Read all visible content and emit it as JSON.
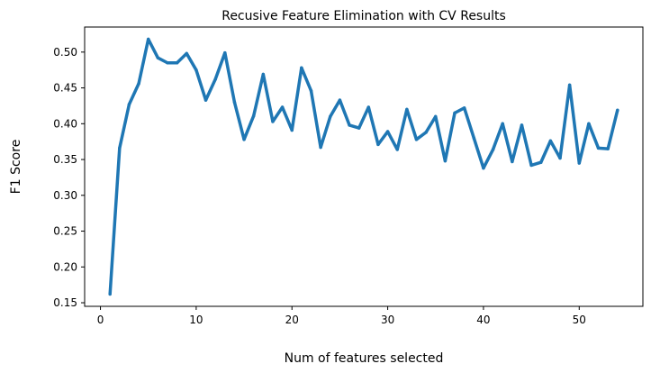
{
  "chart_data": {
    "type": "line",
    "title": "Recusive Feature Elimination with CV Results",
    "xlabel": "Num of features selected",
    "ylabel": "F1 Score",
    "xlim": [
      -1.65,
      56.65
    ],
    "ylim": [
      0.145,
      0.535
    ],
    "xticks": [
      0,
      10,
      20,
      30,
      40,
      50
    ],
    "yticks": [
      0.15,
      0.2,
      0.25,
      0.3,
      0.35,
      0.4,
      0.45,
      0.5
    ],
    "grid": false,
    "series": [
      {
        "color": "#1f77b4",
        "x": [
          1,
          2,
          3,
          4,
          5,
          6,
          7,
          8,
          9,
          10,
          11,
          12,
          13,
          14,
          15,
          16,
          17,
          18,
          19,
          20,
          21,
          22,
          23,
          24,
          25,
          26,
          27,
          28,
          29,
          30,
          31,
          32,
          33,
          34,
          35,
          36,
          37,
          38,
          39,
          40,
          41,
          42,
          43,
          44,
          45,
          46,
          47,
          48,
          49,
          50,
          51,
          52,
          53,
          54
        ],
        "values": [
          0.162,
          0.366,
          0.427,
          0.456,
          0.518,
          0.492,
          0.485,
          0.485,
          0.498,
          0.475,
          0.433,
          0.462,
          0.499,
          0.43,
          0.378,
          0.411,
          0.469,
          0.403,
          0.423,
          0.391,
          0.478,
          0.446,
          0.367,
          0.41,
          0.433,
          0.398,
          0.394,
          0.423,
          0.371,
          0.389,
          0.364,
          0.42,
          0.378,
          0.388,
          0.41,
          0.348,
          0.415,
          0.422,
          0.38,
          0.338,
          0.364,
          0.4,
          0.347,
          0.398,
          0.342,
          0.346,
          0.376,
          0.352,
          0.454,
          0.345,
          0.4,
          0.366,
          0.365,
          0.419
        ]
      }
    ]
  }
}
